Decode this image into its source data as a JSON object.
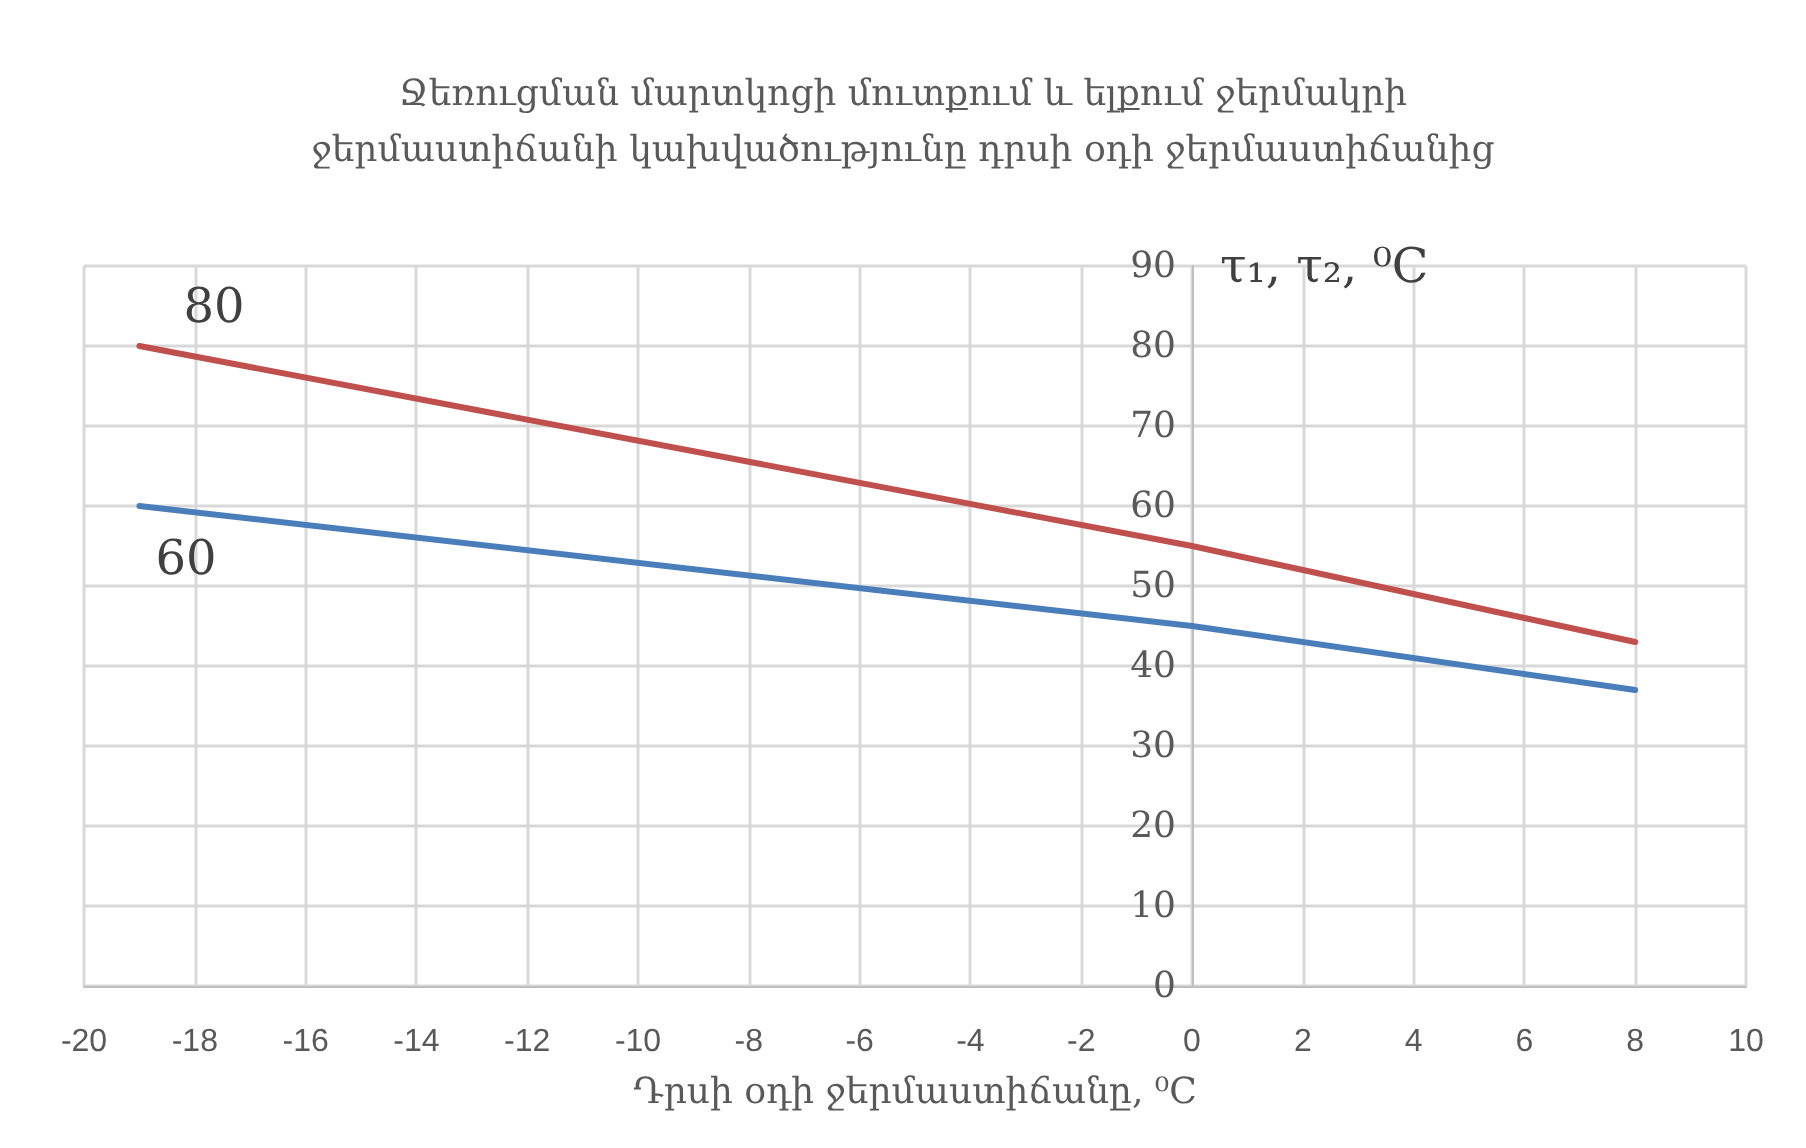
{
  "chart_data": {
    "type": "line",
    "title": "Ջեռուցման մարտկոցի մուտքում և ելքում ջերմակրի\nջերմաստիճանի կախվածությունը դրսի օդի ջերմաստիճանից",
    "xlabel": "Դրսի օդի ջերմաստիճանը, ⁰C",
    "ylabel": "τ₁, τ₂, ⁰C",
    "x": [
      -19,
      0,
      8
    ],
    "series": [
      {
        "color": "#c0504d",
        "values": [
          80,
          55,
          43
        ],
        "value_labels": [
          "80",
          null,
          null
        ]
      },
      {
        "color": "#4a7ebb",
        "values": [
          60,
          45,
          37
        ],
        "value_labels": [
          "60",
          null,
          null
        ]
      }
    ],
    "xlim": [
      -20,
      10
    ],
    "xticks": [
      -20,
      -18,
      -16,
      -14,
      -12,
      -10,
      -8,
      -6,
      -4,
      -2,
      0,
      2,
      4,
      6,
      8,
      10
    ],
    "ylim": [
      0,
      90
    ],
    "yticks": [
      0,
      10,
      20,
      30,
      40,
      50,
      60,
      70,
      80,
      90
    ],
    "grid": true,
    "marker": "none",
    "line_style": "solid"
  }
}
